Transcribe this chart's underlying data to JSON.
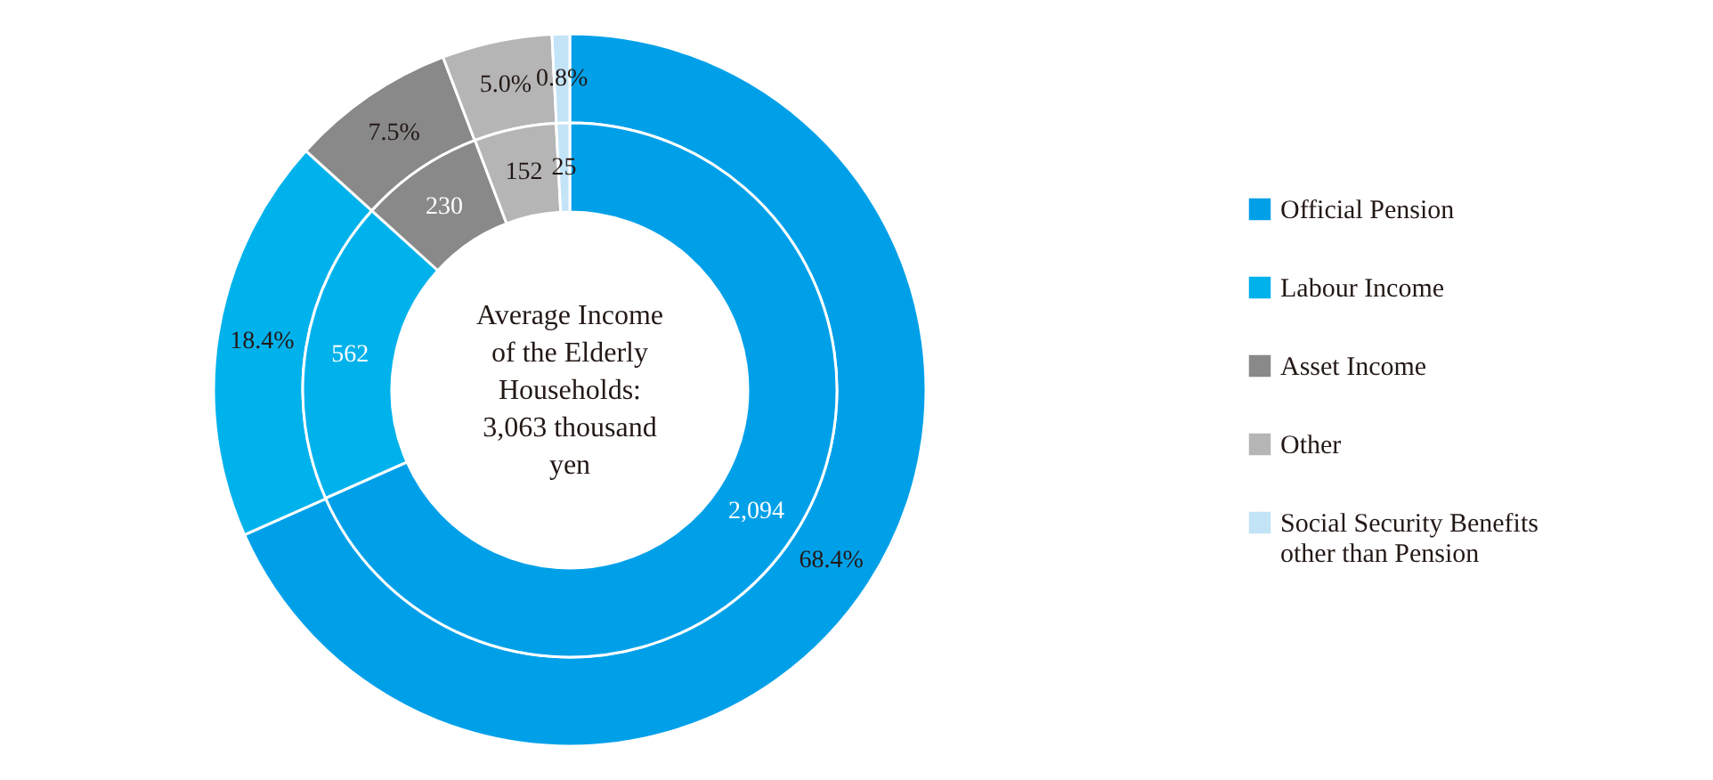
{
  "chart_data": {
    "type": "donut",
    "categories": [
      "Official Pension",
      "Labour Income",
      "Asset Income",
      "Other",
      "Social Security Benefits other than Pension"
    ],
    "colors": [
      "#00a0e9",
      "#00b2ec",
      "#898989",
      "#b5b5b5",
      "#c3e3f7"
    ],
    "series": [
      {
        "values": [
          68.4,
          18.4,
          7.5,
          5.0,
          0.8
        ],
        "value_labels": [
          "68.4%",
          "18.4%",
          "7.5%",
          "5.0%",
          "0.8%"
        ]
      },
      {
        "values": [
          2094,
          562,
          230,
          152,
          25
        ],
        "value_labels": [
          "2,094",
          "562",
          "230",
          "152",
          "25"
        ]
      }
    ],
    "legend": "right",
    "annotations": [
      "Average Income of the Elderly Households: 3,063 thousand yen"
    ]
  }
}
